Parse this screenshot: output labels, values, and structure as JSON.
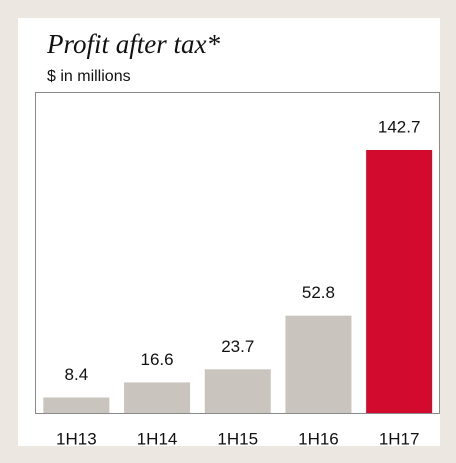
{
  "chart_data": {
    "type": "bar",
    "title": "Profit after tax*",
    "subtitle": "$ in millions",
    "categories": [
      "1H13",
      "1H14",
      "1H15",
      "1H16",
      "1H17"
    ],
    "values": [
      8.4,
      16.6,
      23.7,
      52.8,
      142.7
    ],
    "colors": [
      "#c9c4bd",
      "#c9c4bd",
      "#c9c4bd",
      "#c9c4bd",
      "#d20a2e"
    ]
  }
}
